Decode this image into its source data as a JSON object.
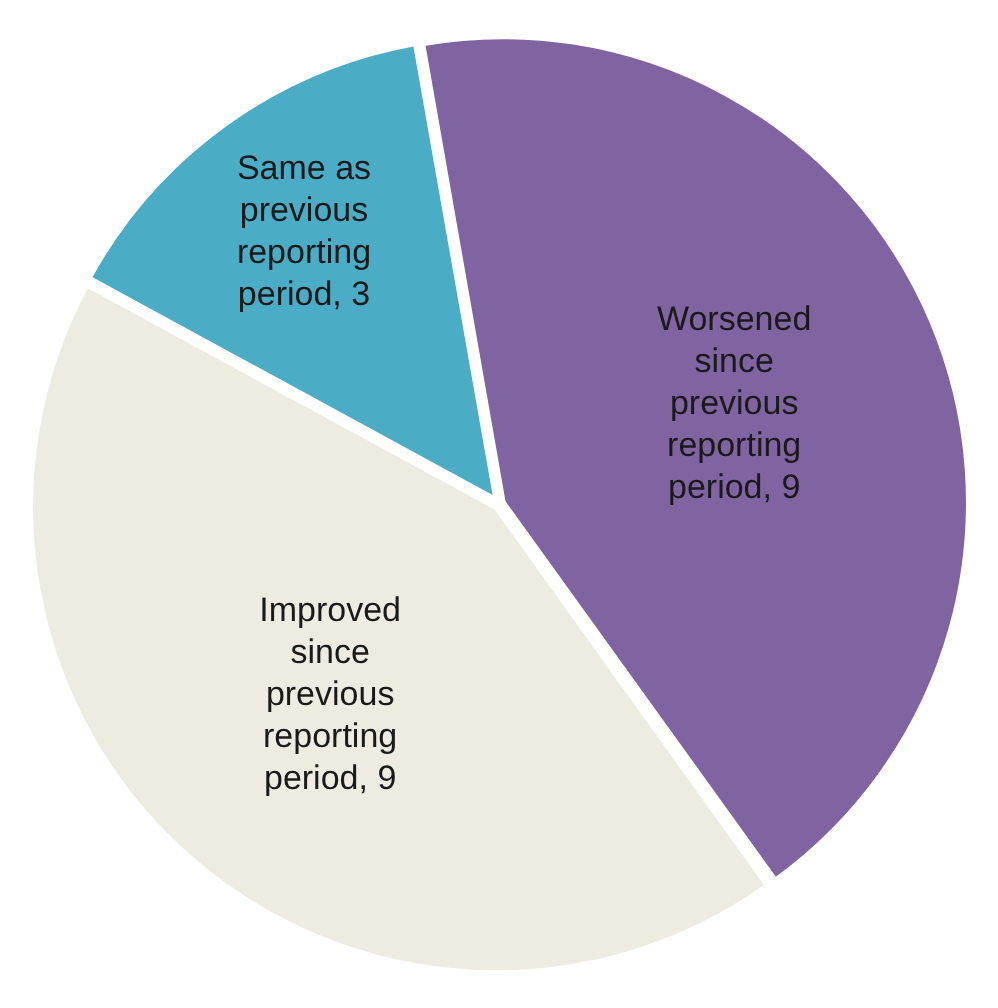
{
  "chart_data": {
    "type": "pie",
    "categories": [
      "Worsened since previous reporting period",
      "Improved since previous reporting period",
      "Same as previous reporting period"
    ],
    "values": [
      9,
      9,
      3
    ],
    "colors": [
      "#8064a2",
      "#eeece1",
      "#4bacc6"
    ],
    "value_labels": [
      ", 9",
      ", 9",
      ", 3"
    ],
    "legend": false
  }
}
